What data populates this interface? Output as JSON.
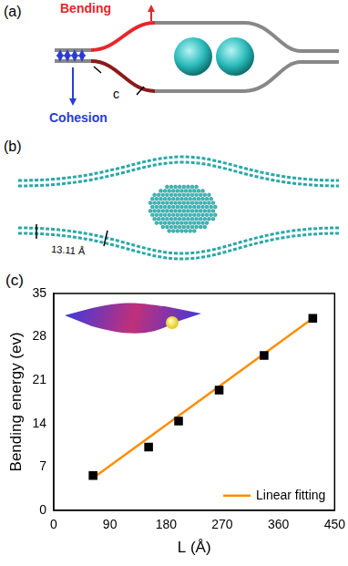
{
  "panel_a": {
    "label": "(a)",
    "bending": "Bending",
    "cohesion": "Cohesion",
    "segment": "c"
  },
  "panel_b": {
    "label": "(b)",
    "length": "13.11 Å"
  },
  "chart_data": {
    "type": "scatter",
    "panel_label": "(c)",
    "x_label": "L (Å)",
    "y_label": "Bending energy (ev)",
    "xlim": [
      0,
      450
    ],
    "xticks": [
      0,
      90,
      180,
      270,
      360,
      450
    ],
    "ylim": [
      0,
      35
    ],
    "yticks": [
      0,
      7,
      14,
      21,
      28,
      35
    ],
    "grid": false,
    "legend": "lower right",
    "series": [
      {
        "type": "scatter",
        "marker": "square",
        "color": "#000000",
        "x": [
          63,
          152,
          200,
          265,
          337,
          415
        ],
        "values": [
          5.6,
          10.2,
          14.4,
          19.4,
          25.0,
          31.0
        ]
      },
      {
        "name": "Linear fitting",
        "type": "line",
        "line_style": "solid",
        "color": "#ff8c00",
        "x": [
          63,
          415
        ],
        "values": [
          5.2,
          31.0
        ]
      }
    ]
  }
}
